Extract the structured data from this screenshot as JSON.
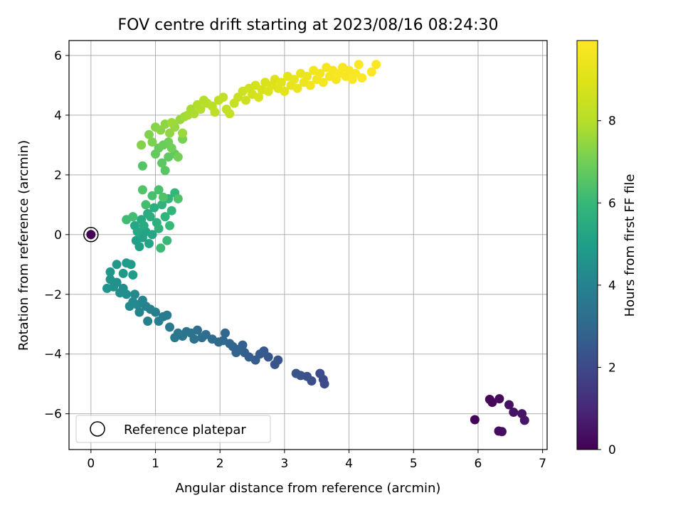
{
  "chart_data": {
    "type": "scatter",
    "title": "FOV centre drift starting at 2023/08/16 08:24:30",
    "xlabel": "Angular distance from reference (arcmin)",
    "ylabel": "Rotation from reference (arcmin)",
    "xlim": [
      -0.34,
      7.07
    ],
    "ylim": [
      -7.2,
      6.5
    ],
    "xticks": [
      0,
      1,
      2,
      3,
      4,
      5,
      6,
      7
    ],
    "yticks": [
      -6,
      -4,
      -2,
      0,
      2,
      4,
      6
    ],
    "grid": true,
    "legend": {
      "position": "lower-left",
      "entries": [
        {
          "label": "Reference platepar",
          "marker": "open-circle"
        }
      ]
    },
    "colorbar": {
      "label": "Hours from first FF file",
      "colormap": "viridis",
      "range": [
        0,
        9.95
      ],
      "ticks": [
        0,
        2,
        4,
        6,
        8
      ]
    },
    "reference_point": {
      "x": 0,
      "y": 0,
      "hours": 0
    },
    "series": [
      {
        "marker": "filled-circle",
        "columns": [
          "x",
          "y",
          "hours"
        ],
        "points": [
          [
            5.95,
            -6.2,
            0.1
          ],
          [
            6.18,
            -5.52,
            0.15
          ],
          [
            6.22,
            -5.62,
            0.2
          ],
          [
            6.33,
            -5.5,
            0.25
          ],
          [
            6.32,
            -6.58,
            0.3
          ],
          [
            6.37,
            -6.6,
            0.35
          ],
          [
            6.48,
            -5.7,
            0.4
          ],
          [
            6.55,
            -5.95,
            0.45
          ],
          [
            6.68,
            -6.0,
            0.5
          ],
          [
            6.72,
            -6.22,
            0.55
          ],
          [
            3.6,
            -4.85,
            2.0
          ],
          [
            3.62,
            -5.0,
            2.05
          ],
          [
            3.55,
            -4.65,
            2.1
          ],
          [
            3.42,
            -4.9,
            2.15
          ],
          [
            3.35,
            -4.75,
            2.2
          ],
          [
            3.25,
            -4.72,
            2.25
          ],
          [
            3.18,
            -4.65,
            2.3
          ],
          [
            2.9,
            -4.2,
            2.35
          ],
          [
            2.85,
            -4.35,
            2.4
          ],
          [
            2.75,
            -4.1,
            2.45
          ],
          [
            2.68,
            -3.9,
            2.5
          ],
          [
            2.62,
            -4.0,
            2.55
          ],
          [
            2.55,
            -4.2,
            2.6
          ],
          [
            2.45,
            -4.1,
            2.65
          ],
          [
            2.38,
            -3.95,
            2.7
          ],
          [
            2.35,
            -3.7,
            2.75
          ],
          [
            2.28,
            -3.85,
            2.8
          ],
          [
            2.25,
            -3.95,
            2.85
          ],
          [
            2.2,
            -3.75,
            2.9
          ],
          [
            2.15,
            -3.65,
            2.95
          ],
          [
            2.08,
            -3.3,
            3.0
          ],
          [
            2.05,
            -3.55,
            3.05
          ],
          [
            1.98,
            -3.6,
            3.1
          ],
          [
            1.88,
            -3.5,
            3.15
          ],
          [
            1.78,
            -3.35,
            3.2
          ],
          [
            1.72,
            -3.45,
            3.25
          ],
          [
            1.65,
            -3.2,
            3.3
          ],
          [
            1.6,
            -3.5,
            3.35
          ],
          [
            1.55,
            -3.3,
            3.4
          ],
          [
            1.48,
            -3.25,
            3.45
          ],
          [
            1.42,
            -3.4,
            3.5
          ],
          [
            1.35,
            -3.3,
            3.55
          ],
          [
            1.3,
            -3.45,
            3.6
          ],
          [
            1.22,
            -3.1,
            3.65
          ],
          [
            1.18,
            -2.7,
            3.7
          ],
          [
            1.12,
            -2.75,
            3.75
          ],
          [
            1.05,
            -2.9,
            3.8
          ],
          [
            1.0,
            -2.6,
            3.85
          ],
          [
            0.92,
            -2.5,
            3.9
          ],
          [
            0.88,
            -2.9,
            3.95
          ],
          [
            0.85,
            -2.4,
            4.0
          ],
          [
            0.8,
            -2.2,
            4.05
          ],
          [
            0.75,
            -2.6,
            4.1
          ],
          [
            0.72,
            -2.35,
            4.15
          ],
          [
            0.68,
            -2.0,
            4.2
          ],
          [
            0.65,
            -2.25,
            4.25
          ],
          [
            0.6,
            -2.4,
            4.3
          ],
          [
            0.55,
            -2.0,
            4.35
          ],
          [
            0.5,
            -1.8,
            4.4
          ],
          [
            0.45,
            -1.95,
            4.45
          ],
          [
            0.4,
            -1.6,
            4.5
          ],
          [
            0.35,
            -1.75,
            4.55
          ],
          [
            0.3,
            -1.5,
            4.6
          ],
          [
            0.25,
            -1.8,
            4.65
          ],
          [
            0.3,
            -1.25,
            4.7
          ],
          [
            0.4,
            -1.0,
            4.75
          ],
          [
            0.5,
            -1.3,
            4.8
          ],
          [
            0.55,
            -0.95,
            4.85
          ],
          [
            0.62,
            -1.0,
            4.9
          ],
          [
            0.65,
            -1.35,
            4.95
          ],
          [
            0.7,
            -0.2,
            5.0
          ],
          [
            0.75,
            -0.4,
            5.05
          ],
          [
            0.8,
            -0.1,
            5.1
          ],
          [
            0.85,
            0.1,
            5.15
          ],
          [
            0.9,
            -0.3,
            5.2
          ],
          [
            0.95,
            0.0,
            5.25
          ],
          [
            0.68,
            0.3,
            5.3
          ],
          [
            0.72,
            0.1,
            5.35
          ],
          [
            0.78,
            0.5,
            5.4
          ],
          [
            0.82,
            0.3,
            5.45
          ],
          [
            0.88,
            0.7,
            5.5
          ],
          [
            0.92,
            0.6,
            5.55
          ],
          [
            0.98,
            0.9,
            5.6
          ],
          [
            1.02,
            0.4,
            5.65
          ],
          [
            1.05,
            0.2,
            5.7
          ],
          [
            1.1,
            1.0,
            5.75
          ],
          [
            1.15,
            0.6,
            5.8
          ],
          [
            1.2,
            1.2,
            5.85
          ],
          [
            1.25,
            0.8,
            5.9
          ],
          [
            1.3,
            1.4,
            5.95
          ],
          [
            1.22,
            0.3,
            6.0
          ],
          [
            1.18,
            -0.2,
            6.05
          ],
          [
            1.08,
            -0.45,
            6.1
          ],
          [
            0.55,
            0.5,
            6.15
          ],
          [
            0.65,
            0.6,
            6.2
          ],
          [
            0.85,
            1.0,
            6.25
          ],
          [
            0.95,
            1.3,
            6.3
          ],
          [
            1.05,
            1.5,
            6.35
          ],
          [
            1.35,
            1.2,
            6.4
          ],
          [
            1.12,
            1.25,
            6.45
          ],
          [
            0.8,
            1.5,
            6.5
          ],
          [
            0.8,
            2.3,
            6.55
          ],
          [
            1.15,
            2.15,
            6.6
          ],
          [
            1.1,
            2.4,
            6.65
          ],
          [
            1.2,
            2.6,
            6.7
          ],
          [
            1.3,
            2.7,
            6.75
          ],
          [
            1.0,
            2.7,
            6.8
          ],
          [
            1.05,
            2.9,
            6.85
          ],
          [
            1.12,
            3.0,
            6.9
          ],
          [
            1.2,
            3.1,
            6.95
          ],
          [
            1.25,
            2.9,
            7.0
          ],
          [
            1.35,
            2.6,
            7.05
          ],
          [
            1.42,
            3.2,
            7.1
          ],
          [
            0.95,
            3.1,
            7.15
          ],
          [
            0.9,
            3.35,
            7.2
          ],
          [
            0.78,
            3.0,
            7.25
          ],
          [
            1.0,
            3.6,
            7.3
          ],
          [
            1.08,
            3.5,
            7.35
          ],
          [
            1.15,
            3.7,
            7.4
          ],
          [
            1.22,
            3.4,
            7.45
          ],
          [
            1.3,
            3.6,
            7.5
          ],
          [
            1.38,
            3.85,
            7.55
          ],
          [
            1.42,
            3.4,
            7.6
          ],
          [
            1.25,
            3.75,
            7.65
          ],
          [
            1.45,
            3.95,
            7.7
          ],
          [
            1.5,
            4.0,
            7.75
          ],
          [
            1.55,
            4.2,
            7.8
          ],
          [
            1.6,
            4.05,
            7.85
          ],
          [
            1.65,
            4.35,
            7.9
          ],
          [
            1.7,
            4.2,
            7.95
          ],
          [
            1.75,
            4.5,
            8.0
          ],
          [
            1.8,
            4.4,
            8.05
          ],
          [
            1.88,
            4.3,
            8.1
          ],
          [
            1.92,
            4.1,
            8.15
          ],
          [
            1.98,
            4.5,
            8.2
          ],
          [
            2.05,
            4.6,
            8.25
          ],
          [
            2.1,
            4.2,
            8.3
          ],
          [
            2.15,
            4.05,
            8.35
          ],
          [
            2.22,
            4.4,
            8.4
          ],
          [
            2.28,
            4.6,
            8.45
          ],
          [
            2.35,
            4.8,
            8.5
          ],
          [
            2.4,
            4.5,
            8.55
          ],
          [
            2.45,
            4.9,
            8.6
          ],
          [
            2.5,
            4.7,
            8.65
          ],
          [
            2.55,
            5.0,
            8.7
          ],
          [
            2.6,
            4.6,
            8.75
          ],
          [
            2.65,
            4.85,
            8.8
          ],
          [
            2.7,
            5.1,
            8.85
          ],
          [
            2.75,
            4.8,
            8.9
          ],
          [
            2.8,
            5.0,
            8.95
          ],
          [
            2.85,
            5.2,
            9.0
          ],
          [
            2.9,
            4.9,
            9.05
          ],
          [
            2.95,
            5.1,
            9.1
          ],
          [
            3.0,
            4.8,
            9.15
          ],
          [
            3.05,
            5.3,
            9.2
          ],
          [
            3.1,
            5.0,
            9.25
          ],
          [
            3.15,
            5.2,
            9.3
          ],
          [
            3.2,
            4.9,
            9.35
          ],
          [
            3.25,
            5.4,
            9.4
          ],
          [
            3.3,
            5.1,
            9.45
          ],
          [
            3.35,
            5.3,
            9.5
          ],
          [
            3.4,
            5.0,
            9.55
          ],
          [
            3.45,
            5.5,
            9.6
          ],
          [
            3.5,
            5.2,
            9.62
          ],
          [
            3.55,
            5.4,
            9.64
          ],
          [
            3.6,
            5.1,
            9.66
          ],
          [
            3.65,
            5.6,
            9.68
          ],
          [
            3.7,
            5.3,
            9.7
          ],
          [
            3.75,
            5.5,
            9.72
          ],
          [
            3.8,
            5.2,
            9.74
          ],
          [
            3.85,
            5.4,
            9.76
          ],
          [
            3.9,
            5.6,
            9.78
          ],
          [
            3.95,
            5.3,
            9.8
          ],
          [
            4.0,
            5.5,
            9.82
          ],
          [
            4.05,
            5.2,
            9.84
          ],
          [
            4.1,
            5.4,
            9.86
          ],
          [
            4.15,
            5.7,
            9.88
          ],
          [
            4.2,
            5.25,
            9.9
          ],
          [
            4.35,
            5.45,
            9.92
          ],
          [
            4.42,
            5.7,
            9.95
          ]
        ]
      }
    ]
  }
}
